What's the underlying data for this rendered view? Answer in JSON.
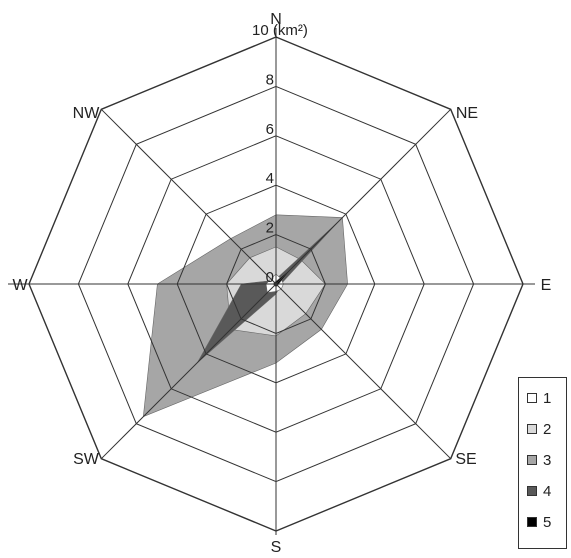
{
  "chart_data": {
    "type": "radar",
    "title": "",
    "radial_max": 10,
    "radial_ticks": [
      "0",
      "2",
      "4",
      "6",
      "8"
    ],
    "unit_label": "10 (km²)",
    "directions": [
      "N",
      "NE",
      "E",
      "SE",
      "S",
      "SW",
      "W",
      "NW"
    ],
    "series": [
      {
        "name": "1",
        "color": "#ffffff",
        "values": [
          0.4,
          0.3,
          0.3,
          0.3,
          0.3,
          0.5,
          0.4,
          0.3
        ]
      },
      {
        "name": "2",
        "color": "#d9d9d9",
        "values": [
          1.5,
          1.4,
          2.0,
          1.7,
          2.1,
          2.6,
          2.0,
          1.5
        ]
      },
      {
        "name": "3",
        "color": "#a6a6a6",
        "values": [
          2.8,
          3.8,
          2.9,
          2.6,
          3.2,
          7.6,
          4.8,
          2.6
        ]
      },
      {
        "name": "4",
        "color": "#595959",
        "values": [
          0.2,
          3.5,
          0.2,
          0.2,
          0.4,
          4.5,
          1.4,
          0.2
        ]
      },
      {
        "name": "5",
        "color": "#000000",
        "values": [
          0.1,
          1.1,
          0.1,
          0.1,
          0.1,
          0.1,
          0.1,
          0.1
        ]
      }
    ]
  }
}
